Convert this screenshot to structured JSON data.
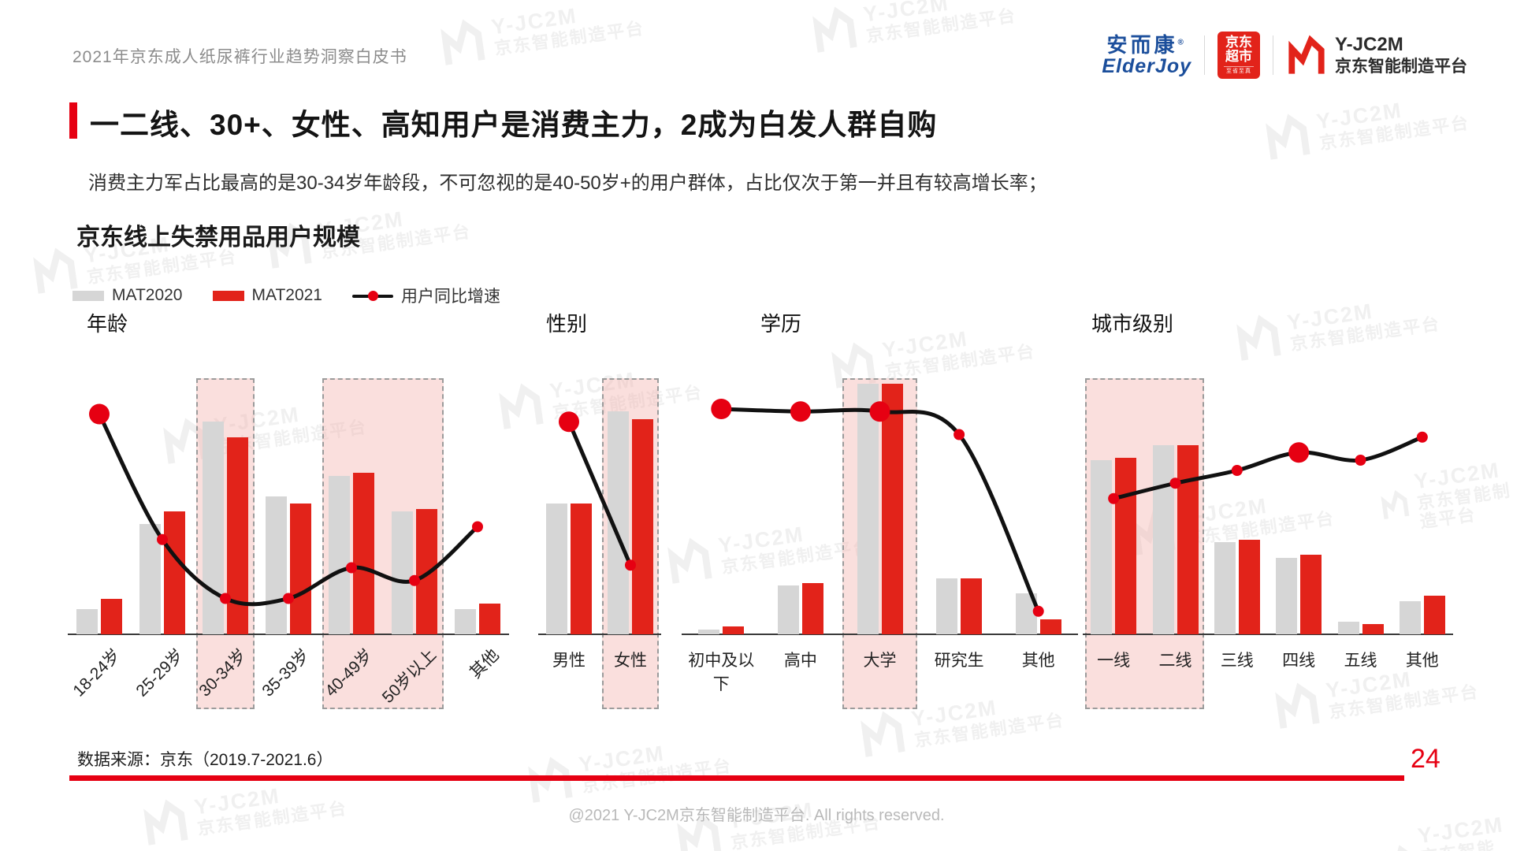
{
  "page": {
    "header": "2021年京东成人纸尿裤行业趋势洞察白皮书",
    "title": "一二线、30+、女性、高知用户是消费主力，2成为白发人群自购",
    "subtitle": "消费主力军占比最高的是30-34岁年龄段，不可忽视的是40-50岁+的用户群体，占比仅次于第一并且有较高增长率；",
    "chart_title": "京东线上失禁用品用户规模",
    "data_source": "数据来源：京东（2019.7-2021.6）",
    "page_number": "24",
    "copyright": "@2021 Y-JC2M京东智能制造平台. All rights reserved."
  },
  "legend": [
    {
      "label": "MAT2020",
      "type": "bar",
      "color": "#d6d6d6"
    },
    {
      "label": "MAT2021",
      "type": "bar",
      "color": "#e2231a"
    },
    {
      "label": "用户同比增速",
      "type": "line",
      "color": "#111111"
    }
  ],
  "logos": {
    "elderjoy": {
      "cn": "安而康",
      "en": "ElderJoy"
    },
    "jd_supermarket": {
      "line1": "京东",
      "line2": "超市",
      "tagline": "至省至真"
    },
    "yjc2m": {
      "name": "Y-JC2M",
      "subtitle": "京东智能制造平台"
    }
  },
  "watermark": {
    "line1": "Y-JC2M",
    "line2": "京东智能制造平台"
  },
  "colors": {
    "bar_2020": "#d6d6d6",
    "bar_2021": "#e2231a",
    "growth_line": "#111111",
    "growth_dot": "#e60012",
    "highlight_fill": "#f6d3d1",
    "accent_red": "#e60012"
  },
  "chart_data": [
    {
      "type": "bar",
      "title": "年龄",
      "categories": [
        "18-24岁",
        "25-29岁",
        "30-34岁",
        "35-39岁",
        "40-49岁",
        "50岁以上",
        "其他"
      ],
      "series": [
        {
          "name": "MAT2020",
          "values": [
            10,
            43,
            83,
            54,
            62,
            48,
            10
          ]
        },
        {
          "name": "MAT2021",
          "values": [
            14,
            48,
            77,
            51,
            63,
            49,
            12
          ]
        }
      ],
      "growth_line": [
        86,
        37,
        14,
        14,
        26,
        21,
        42
      ],
      "big_dots": [
        0
      ],
      "highlight_ranges": [
        [
          2,
          2
        ],
        [
          4,
          5
        ]
      ],
      "rotated_labels": true,
      "ylim": [
        0,
        100
      ],
      "grid": false
    },
    {
      "type": "bar",
      "title": "性别",
      "categories": [
        "男性",
        "女性"
      ],
      "series": [
        {
          "name": "MAT2020",
          "values": [
            51,
            87
          ]
        },
        {
          "name": "MAT2021",
          "values": [
            51,
            84
          ]
        }
      ],
      "growth_line": [
        83,
        27
      ],
      "big_dots": [
        0
      ],
      "highlight_ranges": [
        [
          1,
          1
        ]
      ],
      "rotated_labels": false,
      "ylim": [
        0,
        100
      ],
      "grid": false
    },
    {
      "type": "bar",
      "title": "学历",
      "categories": [
        "初中及以下",
        "高中",
        "大学",
        "研究生",
        "其他"
      ],
      "series": [
        {
          "name": "MAT2020",
          "values": [
            2,
            19,
            98,
            22,
            16
          ]
        },
        {
          "name": "MAT2021",
          "values": [
            3,
            20,
            98,
            22,
            6
          ]
        }
      ],
      "growth_line": [
        88,
        87,
        87,
        78,
        9
      ],
      "big_dots": [
        0,
        1,
        2
      ],
      "highlight_ranges": [
        [
          2,
          2
        ]
      ],
      "rotated_labels": false,
      "ylim": [
        0,
        100
      ],
      "grid": false
    },
    {
      "type": "bar",
      "title": "城市级别",
      "categories": [
        "一线",
        "二线",
        "三线",
        "四线",
        "五线",
        "其他"
      ],
      "series": [
        {
          "name": "MAT2020",
          "values": [
            68,
            74,
            36,
            30,
            5,
            13
          ]
        },
        {
          "name": "MAT2021",
          "values": [
            69,
            74,
            37,
            31,
            4,
            15
          ]
        }
      ],
      "growth_line": [
        53,
        59,
        64,
        71,
        68,
        77
      ],
      "big_dots": [
        3
      ],
      "highlight_ranges": [
        [
          0,
          1
        ]
      ],
      "rotated_labels": false,
      "ylim": [
        0,
        100
      ],
      "grid": false
    }
  ]
}
